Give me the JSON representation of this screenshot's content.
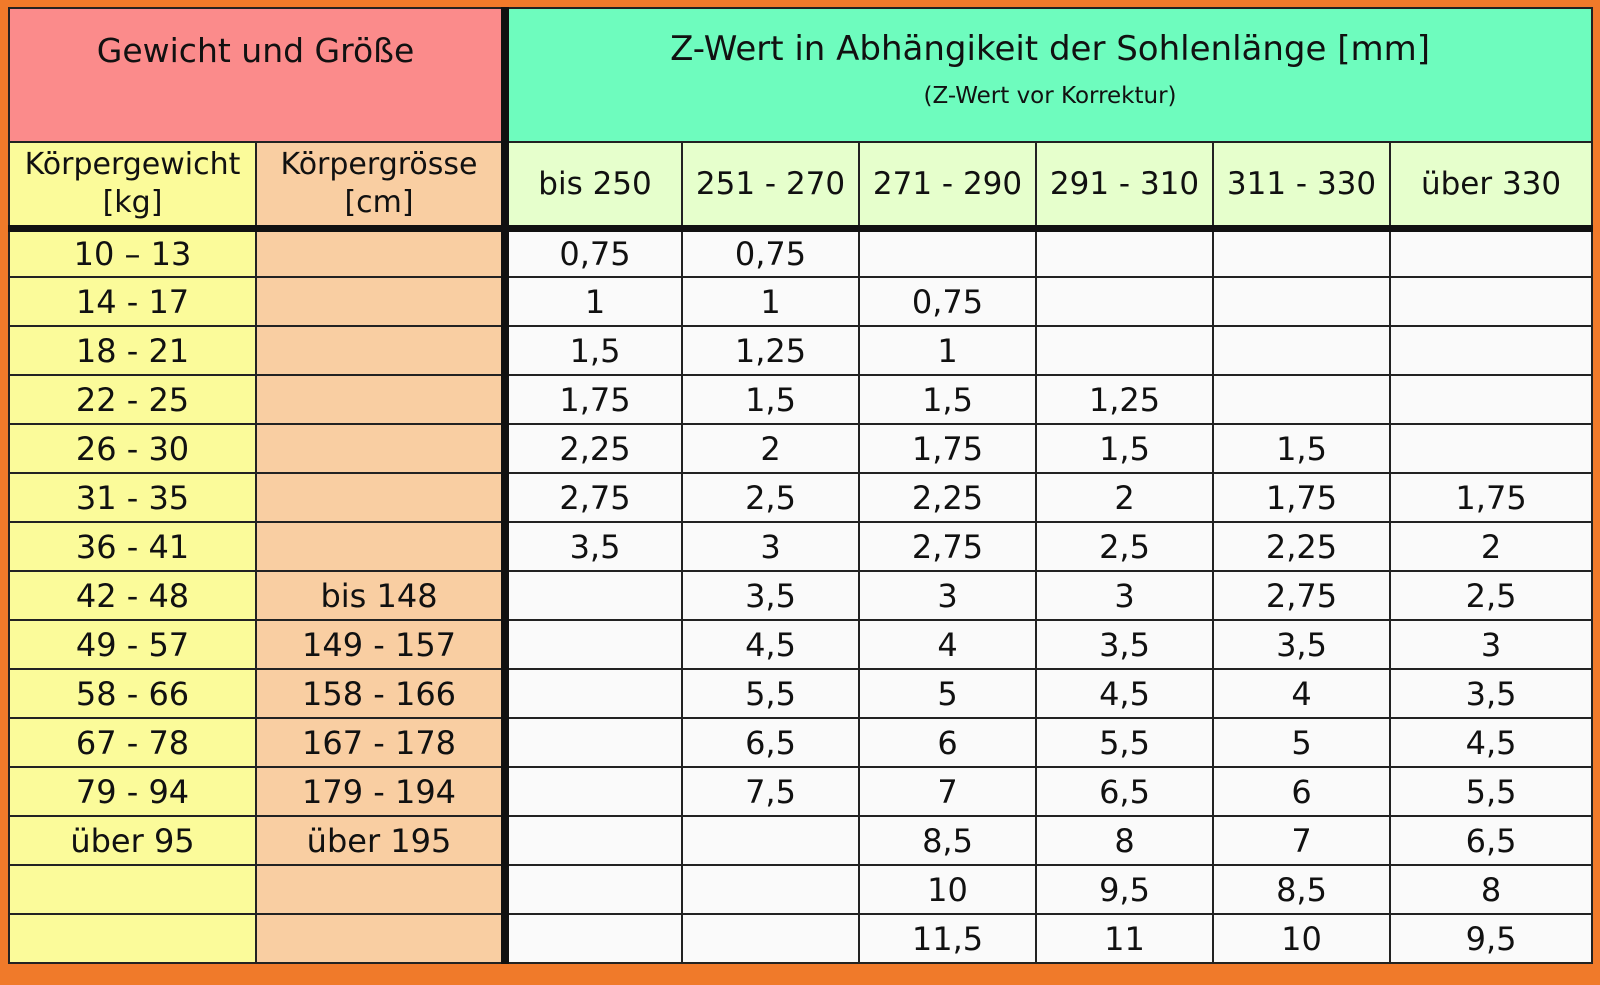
{
  "header": {
    "left_title": "Gewicht und Größe",
    "right_title": "Z-Wert in Abhängikeit der Sohlenlänge [mm]",
    "right_subtitle": "(Z-Wert vor Korrektur)"
  },
  "columns": {
    "weight_line1": "Körpergewicht",
    "weight_line2": "[kg]",
    "height_line1": "Körpergrösse",
    "height_line2": "[cm]",
    "ranges": [
      "bis 250",
      "251 - 270",
      "271 - 290",
      "291 - 310",
      "311 - 330",
      "über 330"
    ]
  },
  "rows": [
    {
      "weight": "10 – 13",
      "height": "",
      "values": [
        "0,75",
        "0,75",
        "",
        "",
        "",
        ""
      ]
    },
    {
      "weight": "14 - 17",
      "height": "",
      "values": [
        "1",
        "1",
        "0,75",
        "",
        "",
        ""
      ]
    },
    {
      "weight": "18 - 21",
      "height": "",
      "values": [
        "1,5",
        "1,25",
        "1",
        "",
        "",
        ""
      ]
    },
    {
      "weight": "22 - 25",
      "height": "",
      "values": [
        "1,75",
        "1,5",
        "1,5",
        "1,25",
        "",
        ""
      ]
    },
    {
      "weight": "26 - 30",
      "height": "",
      "values": [
        "2,25",
        "2",
        "1,75",
        "1,5",
        "1,5",
        ""
      ]
    },
    {
      "weight": "31 - 35",
      "height": "",
      "values": [
        "2,75",
        "2,5",
        "2,25",
        "2",
        "1,75",
        "1,75"
      ]
    },
    {
      "weight": "36 - 41",
      "height": "",
      "values": [
        "3,5",
        "3",
        "2,75",
        "2,5",
        "2,25",
        "2"
      ]
    },
    {
      "weight": "42 - 48",
      "height": "bis 148",
      "values": [
        "",
        "3,5",
        "3",
        "3",
        "2,75",
        "2,5"
      ]
    },
    {
      "weight": "49 - 57",
      "height": "149 - 157",
      "values": [
        "",
        "4,5",
        "4",
        "3,5",
        "3,5",
        "3"
      ]
    },
    {
      "weight": "58 - 66",
      "height": "158 - 166",
      "values": [
        "",
        "5,5",
        "5",
        "4,5",
        "4",
        "3,5"
      ]
    },
    {
      "weight": "67 - 78",
      "height": "167 - 178",
      "values": [
        "",
        "6,5",
        "6",
        "5,5",
        "5",
        "4,5"
      ]
    },
    {
      "weight": "79 - 94",
      "height": "179 - 194",
      "values": [
        "",
        "7,5",
        "7",
        "6,5",
        "6",
        "5,5"
      ]
    },
    {
      "weight": "über 95",
      "height": "über 195",
      "values": [
        "",
        "",
        "8,5",
        "8",
        "7",
        "6,5"
      ]
    },
    {
      "weight": "",
      "height": "",
      "values": [
        "",
        "",
        "10",
        "9,5",
        "8,5",
        "8"
      ]
    },
    {
      "weight": "",
      "height": "",
      "values": [
        "",
        "",
        "11,5",
        "11",
        "10",
        "9,5"
      ]
    }
  ]
}
